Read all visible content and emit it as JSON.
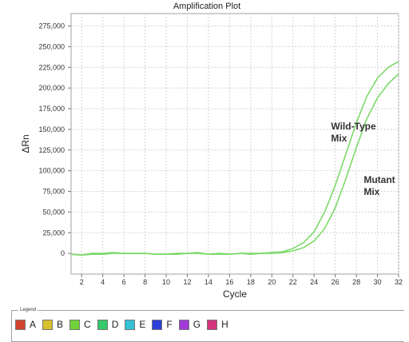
{
  "chart_data": {
    "type": "line",
    "title": "Amplification Plot",
    "xlabel": "Cycle",
    "ylabel": "ΔRn",
    "xlim": [
      1,
      32
    ],
    "ylim": [
      -25000,
      290000
    ],
    "xticks": [
      2,
      4,
      6,
      8,
      10,
      12,
      14,
      16,
      18,
      20,
      22,
      24,
      26,
      28,
      30,
      32
    ],
    "yticks": [
      0,
      25000,
      50000,
      75000,
      100000,
      125000,
      150000,
      175000,
      200000,
      225000,
      250000,
      275000
    ],
    "ytick_labels": [
      "0",
      "25,000",
      "50,000",
      "75,000",
      "100,000",
      "125,000",
      "150,000",
      "175,000",
      "200,000",
      "225,000",
      "250,000",
      "275,000"
    ],
    "grid": true,
    "line_color": "#7dd96a",
    "series": [
      {
        "name": "Wild-Type Mix",
        "x": [
          1,
          2,
          3,
          4,
          5,
          6,
          7,
          8,
          9,
          10,
          11,
          12,
          13,
          14,
          15,
          16,
          17,
          18,
          19,
          20,
          21,
          22,
          23,
          24,
          25,
          26,
          27,
          28,
          29,
          30,
          31,
          32
        ],
        "y": [
          -1000,
          -2000,
          0,
          0,
          1000,
          0,
          0,
          0,
          -1000,
          -1000,
          0,
          0,
          1000,
          -1000,
          0,
          -1000,
          0,
          0,
          0,
          1000,
          2000,
          6000,
          13000,
          26000,
          50000,
          82000,
          120000,
          158000,
          190000,
          212000,
          225000,
          232000
        ]
      },
      {
        "name": "Mutant Mix",
        "x": [
          1,
          2,
          3,
          4,
          5,
          6,
          7,
          8,
          9,
          10,
          11,
          12,
          13,
          14,
          15,
          16,
          17,
          18,
          19,
          20,
          21,
          22,
          23,
          24,
          25,
          26,
          27,
          28,
          29,
          30,
          31,
          32
        ],
        "y": [
          -1000,
          -2000,
          -1000,
          -1000,
          0,
          0,
          0,
          0,
          -1000,
          -1000,
          -1000,
          0,
          0,
          -1000,
          -1000,
          -1000,
          0,
          -1000,
          0,
          0,
          1000,
          3000,
          7000,
          15000,
          30000,
          55000,
          90000,
          128000,
          163000,
          188000,
          205000,
          217000
        ]
      }
    ],
    "annotations": [
      {
        "lines": [
          "Wild-Type",
          "Mix"
        ],
        "x": 25.6,
        "y": 150000
      },
      {
        "lines": [
          "Mutant",
          "Mix"
        ],
        "x": 28.7,
        "y": 85000
      }
    ]
  },
  "legend": {
    "title": "Legend",
    "items": [
      {
        "label": "A",
        "color": "#d2432f"
      },
      {
        "label": "B",
        "color": "#d9c12e"
      },
      {
        "label": "C",
        "color": "#6ed23a"
      },
      {
        "label": "D",
        "color": "#36c96a"
      },
      {
        "label": "E",
        "color": "#35c2d6"
      },
      {
        "label": "F",
        "color": "#2b3fd8"
      },
      {
        "label": "G",
        "color": "#a23ad6"
      },
      {
        "label": "H",
        "color": "#d6357f"
      }
    ]
  }
}
